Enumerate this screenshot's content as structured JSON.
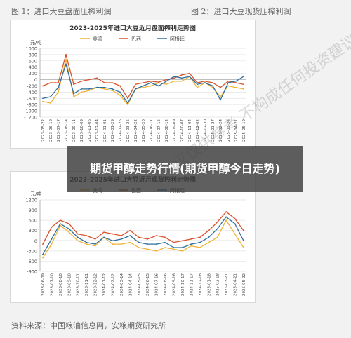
{
  "captions": {
    "fig1": "图 1：进口大豆盘面压榨利润",
    "fig2": "图 2：进口大豆现货压榨利润"
  },
  "source": "资料来源：中国粮油信息网，安粮期货研究所",
  "overlay_title": "期货甲醇走势行情(期货甲醇今日走势)",
  "watermark": "议仅供参考 不构成任何投资建议",
  "colors": {
    "meizhou": "#f2b233",
    "baxi": "#d9532b",
    "agenting": "#2e6f9e"
  },
  "chart_data": [
    {
      "type": "line",
      "title": "2023-2025年进口大豆近月盘面榨利走势图",
      "ylabel": "元/吨",
      "ylim": [
        -1200,
        1000
      ],
      "yticks": [
        1000,
        800,
        600,
        400,
        200,
        0,
        -200,
        -400,
        -600,
        -800,
        -1000,
        -1200
      ],
      "grid": true,
      "legend": "top",
      "categories": [
        "2023-05-22",
        "2023-06-19",
        "2023-07-17",
        "2023-08-14",
        "2023-09-11",
        "2023-10-09",
        "2023-11-06",
        "2023-12-04",
        "2024-01-01",
        "2024-01-29",
        "2024-02-26",
        "2024-03-25",
        "2024-04-22",
        "2024-05-20",
        "2024-06-17",
        "2024-07-15",
        "2024-08-12",
        "2024-09-09",
        "2024-10-07",
        "2024-11-04",
        "2024-12-02",
        "2024-12-30",
        "2025-01-27",
        "2025-02-24",
        "2025-03-24",
        "2025-04-21",
        "2025-05-19"
      ],
      "series": [
        {
          "name": "美湾",
          "values": [
            -700,
            -750,
            -400,
            650,
            -550,
            -400,
            -350,
            -250,
            -300,
            -350,
            -500,
            -800,
            -300,
            -250,
            -200,
            -100,
            -150,
            -50,
            -50,
            100,
            -250,
            -100,
            -250,
            -550,
            -200,
            -250,
            -300
          ]
        },
        {
          "name": "巴西",
          "values": [
            -200,
            -100,
            -100,
            800,
            -150,
            -50,
            0,
            50,
            -100,
            -100,
            -200,
            -600,
            -150,
            -100,
            -50,
            -80,
            0,
            50,
            150,
            200,
            -100,
            -50,
            -100,
            -250,
            -50,
            -100,
            -150
          ]
        },
        {
          "name": "阿根廷",
          "values": [
            -600,
            -550,
            -250,
            500,
            -450,
            -300,
            -300,
            -250,
            -250,
            -300,
            -400,
            -750,
            -300,
            -200,
            -100,
            -200,
            -50,
            100,
            50,
            100,
            -150,
            -100,
            -200,
            -650,
            -100,
            -50,
            100
          ]
        }
      ]
    },
    {
      "type": "line",
      "title": "2023-2025年进口大豆近月现货榨利走势图",
      "ylabel": "元/吨",
      "ylim": [
        -900,
        1200
      ],
      "yticks": [
        1200,
        900,
        600,
        300,
        0,
        -300,
        -600,
        -900
      ],
      "grid": true,
      "legend": "top",
      "categories": [
        "2023-06-09",
        "2023-07-10",
        "2023-08-10",
        "2023-09-10",
        "2023-10-11",
        "2023-11-11",
        "2023-12-12",
        "2024-01-12",
        "2024-02-12",
        "2024-03-14",
        "2024-04-14",
        "2024-05-15",
        "2024-06-15",
        "2024-07-16",
        "2024-08-16",
        "2024-09-16",
        "2024-10-17",
        "2024-11-17",
        "2024-12-18",
        "2025-01-18",
        "2025-02-18",
        "2025-03-21",
        "2025-04-21",
        "2025-05-22"
      ],
      "series": [
        {
          "name": "美湾",
          "values": [
            -500,
            -100,
            450,
            250,
            0,
            -100,
            -150,
            100,
            -100,
            -100,
            -50,
            -200,
            -250,
            -300,
            -200,
            -250,
            -300,
            -150,
            -200,
            -50,
            100,
            600,
            200,
            -200
          ]
        },
        {
          "name": "巴西",
          "values": [
            -100,
            400,
            600,
            500,
            200,
            150,
            50,
            250,
            200,
            150,
            300,
            100,
            50,
            150,
            100,
            -50,
            0,
            50,
            100,
            300,
            550,
            850,
            650,
            300
          ]
        },
        {
          "name": "阿根廷",
          "values": [
            -400,
            50,
            500,
            350,
            100,
            -50,
            -100,
            100,
            0,
            50,
            150,
            -50,
            -100,
            -100,
            -50,
            -200,
            -200,
            -100,
            -50,
            100,
            350,
            700,
            500,
            0
          ]
        }
      ]
    }
  ]
}
